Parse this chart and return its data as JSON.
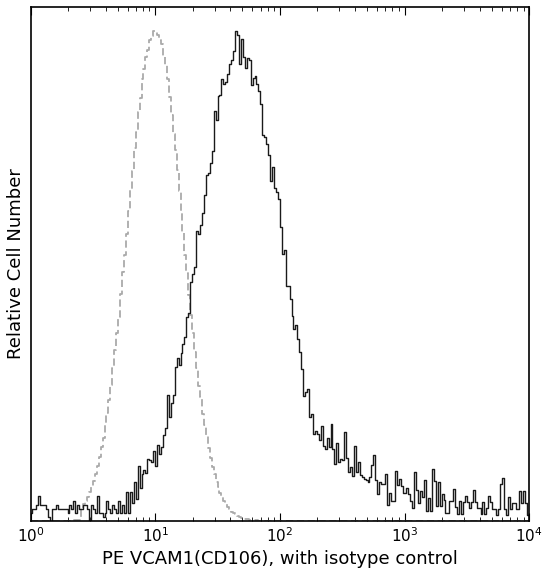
{
  "title": "",
  "xlabel": "PE VCAM1(CD106), with isotype control",
  "ylabel": "Relative Cell Number",
  "xlim_log": [
    0,
    4
  ],
  "ylim": [
    0,
    1.05
  ],
  "background_color": "#ffffff",
  "isotype_color": "#aaaaaa",
  "sample_color": "#1a1a1a",
  "isotype_peak_log": 1.0,
  "sample_peak_log": 1.68,
  "isotype_sigma_log": 0.22,
  "sample_sigma_log": 0.32,
  "xlabel_fontsize": 13,
  "ylabel_fontsize": 13,
  "tick_fontsize": 11,
  "n_bins": 256
}
